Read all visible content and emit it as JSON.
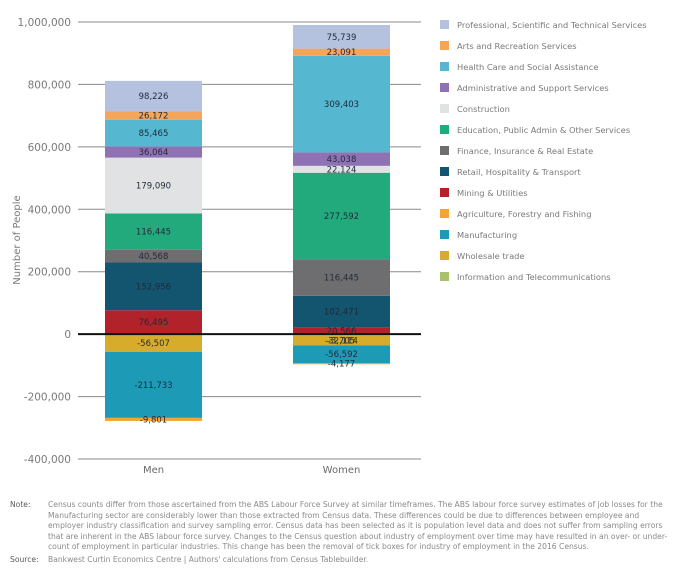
{
  "chart_data": {
    "type": "bar",
    "stacked": true,
    "title": "",
    "xlabel": "",
    "ylabel": "Number of People",
    "ylim": [
      -400000,
      1000000
    ],
    "yticks": [
      1000000,
      800000,
      600000,
      400000,
      200000,
      0,
      -200000,
      -400000
    ],
    "ytick_labels": [
      "1,000,000",
      "800,000",
      "600,000",
      "400,000",
      "200,000",
      "0",
      "-200,000",
      "-400,000"
    ],
    "grid": true,
    "legend_position": "right",
    "categories": [
      "Men",
      "Women"
    ],
    "series": [
      {
        "name": "Professional, Scientific and Technical Services",
        "color": "#b4c1df",
        "values": [
          98226,
          75739
        ]
      },
      {
        "name": "Arts and Recreation Services",
        "color": "#f4a55a",
        "values": [
          26172,
          23091
        ]
      },
      {
        "name": "Health Care and Social Assistance",
        "color": "#55b7d0",
        "values": [
          85465,
          309403
        ]
      },
      {
        "name": "Administrative and Support Services",
        "color": "#8f72b3",
        "values": [
          36064,
          43038
        ]
      },
      {
        "name": "Construction",
        "color": "#e1e2e3",
        "values": [
          179090,
          22124
        ]
      },
      {
        "name": "Education, Public Admin & Other Services",
        "color": "#22a97c",
        "values": [
          116445,
          277592
        ]
      },
      {
        "name": "Finance, Insurance & Real Estate",
        "color": "#6e6e70",
        "values": [
          40568,
          116445
        ]
      },
      {
        "name": "Retail, Hospitality & Transport",
        "color": "#13546f",
        "values": [
          152956,
          102471
        ]
      },
      {
        "name": "Mining & Utilities",
        "color": "#b2222a",
        "values": [
          76495,
          20566
        ]
      },
      {
        "name": "Agriculture, Forestry and Fishing",
        "color": "#f2a530",
        "values": [
          -9801,
          -4177
        ]
      },
      {
        "name": "Manufacturing",
        "color": "#1c9ab6",
        "values": [
          -211733,
          -56592
        ]
      },
      {
        "name": "Wholesale trade",
        "color": "#d7ac2c",
        "values": [
          -56507,
          -32114
        ]
      },
      {
        "name": "Information and Telecommunications",
        "color": "#a9c16c",
        "values": [
          0,
          -3705
        ]
      }
    ],
    "data_labels": {
      "Men": [
        "98,226",
        "26,172",
        "85,465",
        "36,064",
        "179,090",
        "116,445",
        "40,568",
        "152,956",
        "76,495",
        "-9,801",
        "-211,733",
        "-56,507",
        ""
      ],
      "Women": [
        "75,739",
        "23,091",
        "309,403",
        "43,038",
        "22,124",
        "277,592",
        "116,445",
        "102,471",
        "20,566",
        "-4,177",
        "-56,592",
        "-32,114",
        "-3,705"
      ]
    }
  },
  "notes": {
    "note_key": "Note:",
    "note_text": "Census counts differ from those ascertained from the ABS Labour Force Survey at similar timeframes. The ABS labour force survey estimates of job losses for the Manufacturing sector are considerably lower than those extracted from Census data. These differences could be due to differences between employee and employer industry classification and survey sampling error. Census data has been selected as it is population level data and does not suffer from sampling errors that are inherent in the ABS labour force survey. Changes to the Census question about industry of employment over time may have resulted in an over- or under-count of employment in particular industries. This change has been the removal of tick boxes for industry of employment in the 2016 Census.",
    "source_key": "Source:",
    "source_text": "Bankwest Curtin Economics Centre | Authors' calculations from Census Tablebuilder."
  }
}
